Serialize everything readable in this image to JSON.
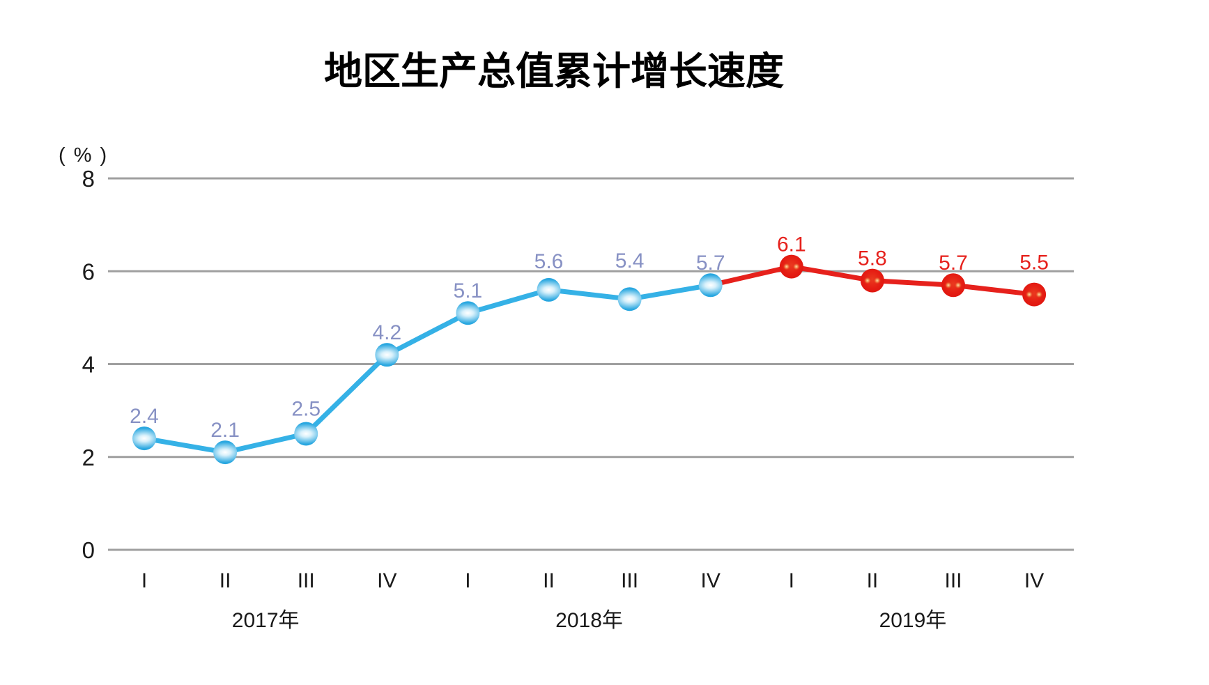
{
  "title": "地区生产总值累计增长速度",
  "chart_data": {
    "type": "line",
    "title": "地区生产总值累计增长速度",
    "unit_label": "( % )",
    "ylim": [
      0,
      8
    ],
    "yticks": [
      "0",
      "2",
      "4",
      "6",
      "8"
    ],
    "grid": "horizontal-gridlines-only",
    "legend": "none",
    "x_quarter_labels": [
      "I",
      "II",
      "III",
      "IV",
      "I",
      "II",
      "III",
      "IV",
      "I",
      "II",
      "III",
      "IV"
    ],
    "year_groups": [
      {
        "label": "2017年",
        "year": "2017",
        "quarter_start": 0,
        "quarter_end": 3
      },
      {
        "label": "2018年",
        "year": "2018",
        "quarter_start": 4,
        "quarter_end": 7
      },
      {
        "label": "2019年",
        "year": "2019",
        "quarter_start": 8,
        "quarter_end": 11
      }
    ],
    "values": [
      2.4,
      2.1,
      2.5,
      4.2,
      5.1,
      5.6,
      5.4,
      5.7,
      6.1,
      5.8,
      5.7,
      5.5
    ],
    "data_labels": [
      "2.4",
      "2.1",
      "2.5",
      "4.2",
      "5.1",
      "5.6",
      "5.4",
      "5.7",
      "6.1",
      "5.8",
      "5.7",
      "5.5"
    ],
    "segments": [
      {
        "name": "blue-segment-2017-2018",
        "line_color": "#35b1e6",
        "label_color": "#8791c4",
        "marker_style": "blue-ball",
        "line_from": 0,
        "line_to": 7,
        "marker_from": 0,
        "marker_to": 7
      },
      {
        "name": "red-segment-2019",
        "line_color": "#e6211c",
        "label_color": "#e6211c",
        "marker_style": "red-ball",
        "line_from": 7,
        "line_to": 11,
        "marker_from": 8,
        "marker_to": 11
      }
    ],
    "colors": {
      "background": "#ffffff",
      "gridline": "#9f9f9f",
      "tick_text": "#1a1a1a",
      "title_text": "#000000",
      "blue_line": "#35b1e6",
      "blue_label": "#8791c4",
      "blue_marker_edge": "#29a7e0",
      "blue_marker_core": "#ffffff",
      "red": "#e6211c",
      "red_marker_highlight": "#ffd9a8"
    }
  }
}
